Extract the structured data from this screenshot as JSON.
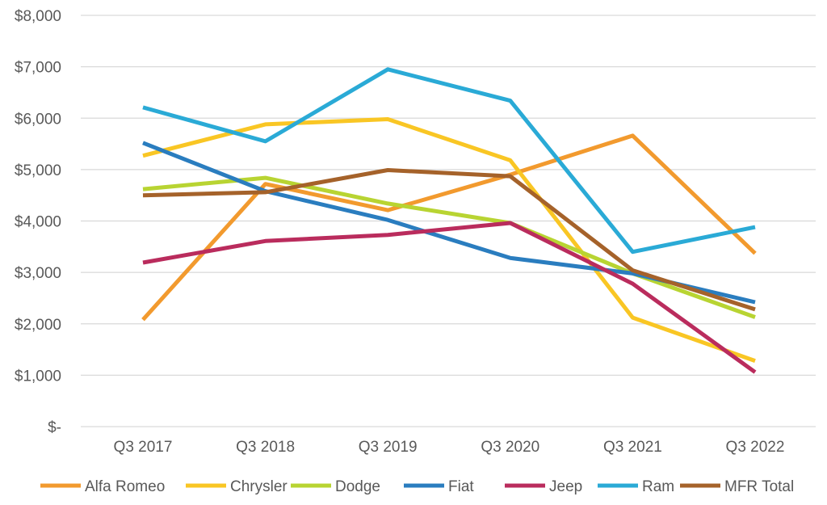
{
  "chart_data": {
    "type": "line",
    "categories": [
      "Q3 2017",
      "Q3 2018",
      "Q3 2019",
      "Q3 2020",
      "Q3 2021",
      "Q3 2022"
    ],
    "ylim": [
      0,
      8000
    ],
    "y_ticks": [
      0,
      1000,
      2000,
      3000,
      4000,
      5000,
      6000,
      7000,
      8000
    ],
    "y_tick_labels": [
      "$-",
      "$1,000",
      "$2,000",
      "$3,000",
      "$4,000",
      "$5,000",
      "$6,000",
      "$7,000",
      "$8,000"
    ],
    "grid": true,
    "legend_position": "bottom",
    "series": [
      {
        "name": "Alfa Romeo",
        "color": "#f29a2e",
        "values": [
          2080,
          4720,
          4210,
          4900,
          5660,
          3370
        ]
      },
      {
        "name": "Chrysler",
        "color": "#f9c624",
        "values": [
          5270,
          5880,
          5980,
          5180,
          2120,
          1280
        ]
      },
      {
        "name": "Dodge",
        "color": "#b8d432",
        "values": [
          4620,
          4840,
          4340,
          3960,
          2980,
          2130
        ]
      },
      {
        "name": "Fiat",
        "color": "#2a7dbf",
        "values": [
          5520,
          4580,
          4020,
          3280,
          2980,
          2420
        ]
      },
      {
        "name": "Jeep",
        "color": "#ba2c5d",
        "values": [
          3190,
          3610,
          3730,
          3960,
          2780,
          1060
        ]
      },
      {
        "name": "Ram",
        "color": "#2aaad6",
        "values": [
          6210,
          5550,
          6950,
          6340,
          3400,
          3880
        ]
      },
      {
        "name": "MFR Total",
        "color": "#a5622a",
        "values": [
          4500,
          4560,
          4990,
          4870,
          3040,
          2280
        ]
      }
    ]
  }
}
